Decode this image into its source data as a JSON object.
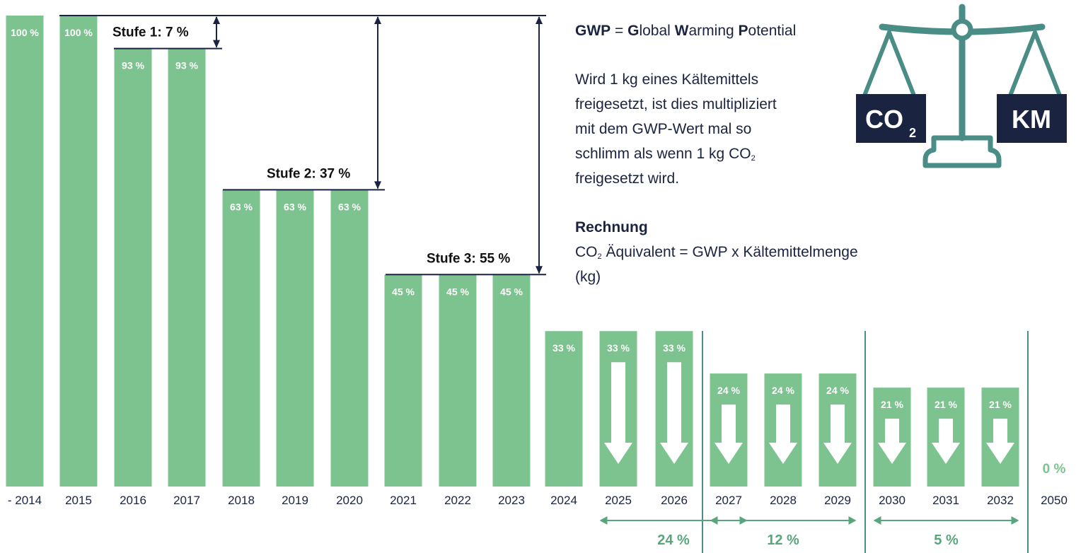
{
  "chart_data": {
    "type": "bar",
    "categories": [
      "- 2014",
      "2015",
      "2016",
      "2017",
      "2018",
      "2019",
      "2020",
      "2021",
      "2022",
      "2023",
      "2024",
      "2025",
      "2026",
      "2027",
      "2028",
      "2029",
      "2030",
      "2031",
      "2032",
      "2050"
    ],
    "values": [
      100,
      100,
      93,
      93,
      63,
      63,
      63,
      45,
      45,
      45,
      33,
      33,
      33,
      24,
      24,
      24,
      21,
      21,
      21,
      0
    ],
    "value_labels": [
      "100 %",
      "100 %",
      "93 %",
      "93 %",
      "63 %",
      "63 %",
      "63 %",
      "45 %",
      "45 %",
      "45 %",
      "33 %",
      "33 %",
      "33 %",
      "24 %",
      "24 %",
      "24 %",
      "21 %",
      "21 %",
      "21 %",
      "0 %"
    ],
    "ylim": [
      0,
      100
    ],
    "down_arrow_indices": [
      11,
      12,
      13,
      14,
      15,
      16,
      17,
      18
    ],
    "stages": [
      {
        "label": "Stufe 1: 7 %",
        "from_value": 100,
        "to_value": 93
      },
      {
        "label": "Stufe 2: 37 %",
        "from_value": 100,
        "to_value": 63
      },
      {
        "label": "Stufe 3: 55 %",
        "from_value": 100,
        "to_value": 45
      }
    ],
    "ranges": [
      {
        "label": "24 %",
        "start_index": 11,
        "end_index": 13
      },
      {
        "label": "12 %",
        "start_index": 13,
        "end_index": 15
      },
      {
        "label": "5 %",
        "start_index": 16,
        "end_index": 18
      }
    ],
    "colors": {
      "bar": "#7cc38f",
      "navy": "#1a2340",
      "teal": "#4a8c86",
      "range": "#5aa67c"
    }
  },
  "info": {
    "gwp_abbr": "GWP",
    "gwp_equals": " = ",
    "gwp_g": "G",
    "gwp_lobal": "lobal ",
    "gwp_w": "W",
    "gwp_arming": "arming ",
    "gwp_p": "P",
    "gwp_otential": "otential",
    "desc_1": "Wird 1 kg eines Kältemittels",
    "desc_2": "freigesetzt, ist dies multipliziert",
    "desc_3": "mit dem GWP-Wert mal so",
    "desc_4": "schlimm als wenn 1 kg CO",
    "desc_4_sub": "2",
    "desc_5": "freigesetzt wird.",
    "calc_title": "Rechnung",
    "calc_co": "CO",
    "calc_sub": "2",
    "calc_rest": " Äquivalent = GWP x Kältemittelmenge (kg)"
  },
  "scale": {
    "left_box": "CO",
    "left_box_sub": "2",
    "right_box": "KM"
  }
}
